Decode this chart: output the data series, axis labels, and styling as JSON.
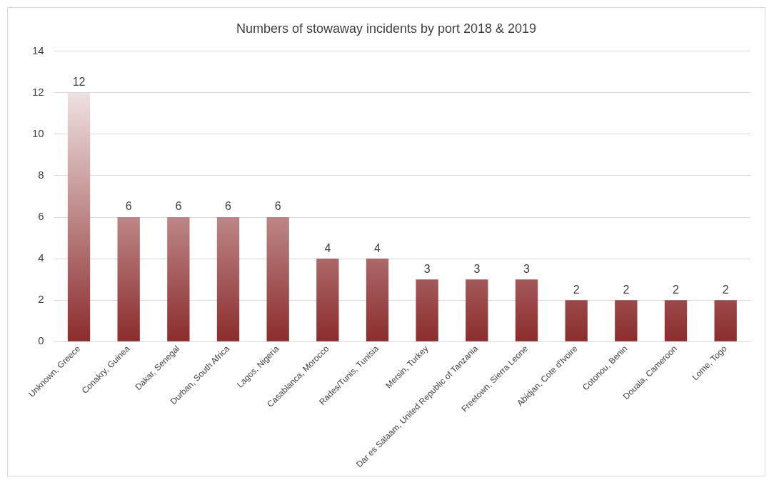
{
  "chart_data": {
    "type": "bar",
    "title": "Numbers of stowaway incidents by port 2018 & 2019",
    "categories": [
      "Unknown, Greece",
      "Conakry, Guinea",
      "Dakar, Senegal",
      "Durban, South Africa",
      "Lagos, Nigeria",
      "Casablanca, Morocco",
      "Rades/Tunis, Tunisia",
      "Mersin, Turkey",
      "Dar es Salaam, United Republic of Tanzania",
      "Freetown, Sierra Leone",
      "Abidjan, Cote d'Ivoire",
      "Cotonou, Benin",
      "Douala, Cameroon",
      "Lome, Togo"
    ],
    "values": [
      12,
      6,
      6,
      6,
      6,
      4,
      4,
      3,
      3,
      3,
      2,
      2,
      2,
      2
    ],
    "color": "#8b2c2c",
    "ylim": [
      0,
      14
    ],
    "yticks": [
      0,
      2,
      4,
      6,
      8,
      10,
      12,
      14
    ],
    "grid": "y",
    "data_labels": true
  }
}
